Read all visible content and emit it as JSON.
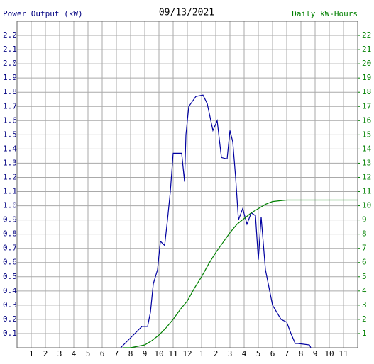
{
  "chart_data": {
    "type": "line",
    "title": "09/13/2021",
    "ylabel": "Power Output (kW)",
    "y2label": "Daily kW-Hours",
    "xlim": [
      0,
      24
    ],
    "xticks": [
      1,
      2,
      3,
      4,
      5,
      6,
      7,
      8,
      9,
      10,
      11,
      12,
      {
        "value": 13,
        "label": "1"
      },
      {
        "value": 14,
        "label": "2"
      },
      {
        "value": 15,
        "label": "3"
      },
      {
        "value": 16,
        "label": "4"
      },
      {
        "value": 17,
        "label": "5"
      },
      {
        "value": 18,
        "label": "6"
      },
      {
        "value": 19,
        "label": "7"
      },
      {
        "value": 20,
        "label": "8"
      },
      {
        "value": 21,
        "label": "9"
      },
      {
        "value": 22,
        "label": "10"
      },
      {
        "value": 23,
        "label": "11"
      }
    ],
    "ylim": [
      0,
      2.3
    ],
    "yticks": [
      0.1,
      0.2,
      0.3,
      0.4,
      0.5,
      0.6,
      0.7,
      0.8,
      0.9,
      {
        "value": 1,
        "label": "1.0"
      },
      1.1,
      1.2,
      1.3,
      1.4,
      1.5,
      1.6,
      1.7,
      1.8,
      1.9,
      {
        "value": 2,
        "label": "2.0"
      },
      2.1,
      2.2
    ],
    "y2lim": [
      0,
      23
    ],
    "y2ticks": [
      1,
      2,
      3,
      4,
      5,
      6,
      7,
      8,
      9,
      10,
      11,
      12,
      13,
      14,
      15,
      16,
      17,
      18,
      19,
      20,
      21,
      22
    ],
    "grid": true,
    "series": [
      {
        "color": "#0000a0",
        "x": [
          7.3,
          7.8,
          8.3,
          8.8,
          9.2,
          9.4,
          9.6,
          9.9,
          10.1,
          10.4,
          10.6,
          10.8,
          11.0,
          11.6,
          11.8,
          11.9,
          12.1,
          12.6,
          13.1,
          13.4,
          13.8,
          14.1,
          14.4,
          14.8,
          15.0,
          15.2,
          15.4,
          15.6,
          15.9,
          16.2,
          16.5,
          16.8,
          17.0,
          17.2,
          17.5,
          17.7,
          18.0,
          18.3,
          18.6,
          19.0,
          19.3,
          19.6,
          19.8,
          20.6,
          20.7
        ],
        "values": [
          0,
          0.05,
          0.1,
          0.15,
          0.15,
          0.25,
          0.45,
          0.55,
          0.75,
          0.72,
          0.9,
          1.1,
          1.37,
          1.37,
          1.17,
          1.5,
          1.7,
          1.77,
          1.78,
          1.72,
          1.53,
          1.6,
          1.34,
          1.33,
          1.53,
          1.45,
          1.2,
          0.9,
          0.98,
          0.87,
          0.95,
          0.93,
          0.62,
          0.92,
          0.55,
          0.45,
          0.3,
          0.25,
          0.2,
          0.18,
          0.1,
          0.03,
          0.03,
          0.02,
          0
        ]
      },
      {
        "color": "#008000",
        "axis": "y2",
        "x": [
          7.5,
          8,
          8.5,
          9,
          9.5,
          10,
          10.5,
          11,
          11.5,
          12,
          12.5,
          13,
          13.5,
          14,
          14.5,
          15,
          15.5,
          16,
          16.5,
          17,
          17.5,
          18,
          18.5,
          19,
          24
        ],
        "values": [
          0,
          0,
          0.1,
          0.2,
          0.5,
          0.9,
          1.4,
          2.0,
          2.7,
          3.3,
          4.2,
          5.0,
          5.9,
          6.7,
          7.4,
          8.1,
          8.7,
          9.1,
          9.5,
          9.8,
          10.1,
          10.3,
          10.35,
          10.4,
          10.4
        ]
      }
    ]
  }
}
